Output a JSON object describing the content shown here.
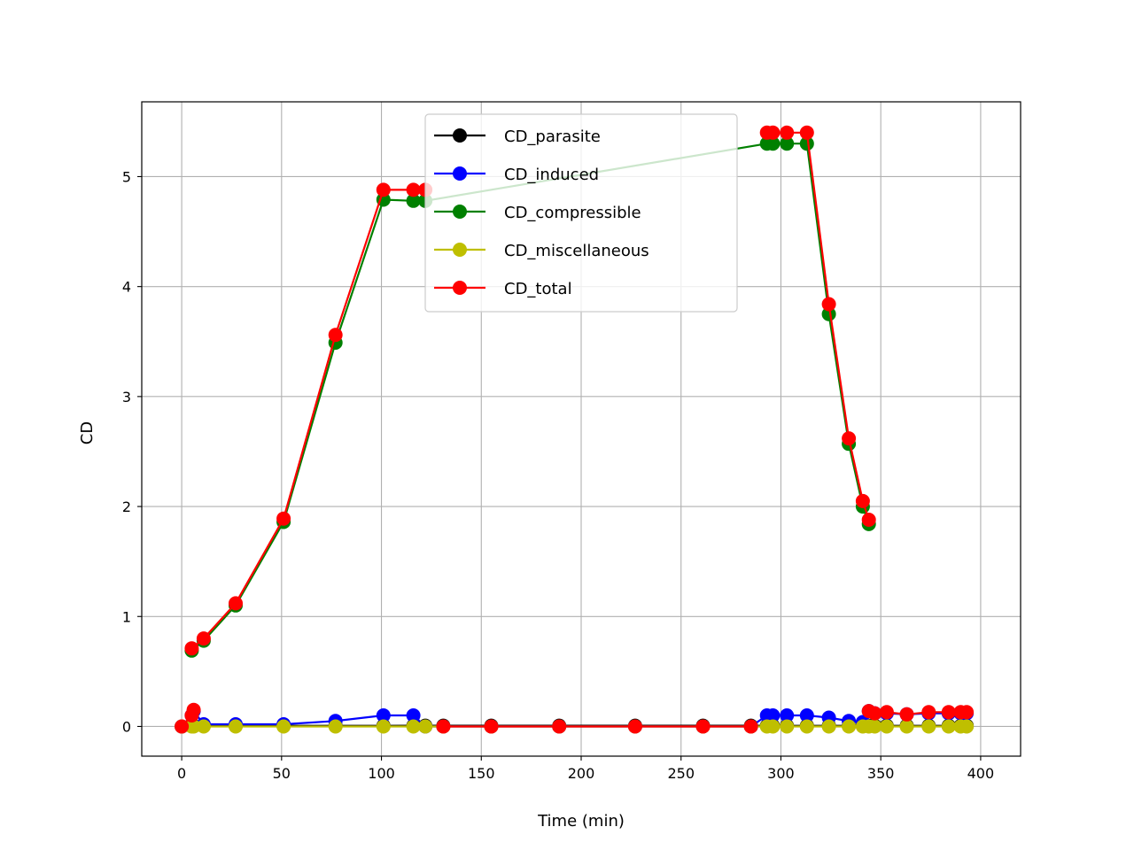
{
  "chart_data": {
    "type": "line",
    "title": "",
    "xlabel": "Time (min)",
    "ylabel": "CD",
    "xlim": [
      -20,
      420
    ],
    "ylim": [
      -0.27,
      5.68
    ],
    "xticks": [
      0,
      50,
      100,
      150,
      200,
      250,
      300,
      350,
      400
    ],
    "yticks": [
      0,
      1,
      2,
      3,
      4,
      5
    ],
    "grid": true,
    "legend_position": "top-center",
    "series": [
      {
        "name": "CD_parasite",
        "color": "#000000",
        "x": [
          0,
          5,
          6,
          11,
          27,
          51,
          77,
          101,
          116,
          122,
          131,
          155,
          189,
          227,
          261,
          285,
          293,
          296,
          303,
          313,
          324,
          334,
          341,
          344,
          347,
          353,
          363,
          374,
          384,
          390,
          393
        ],
        "y": [
          0,
          0.005,
          0.005,
          0.006,
          0.006,
          0.006,
          0.006,
          0.006,
          0.007,
          0.007,
          0.007,
          0.007,
          0.007,
          0.007,
          0.007,
          0.007,
          0.006,
          0.006,
          0.006,
          0.006,
          0.006,
          0.006,
          0.006,
          0.006,
          0.006,
          0.006,
          0.006,
          0.006,
          0.006,
          0.006,
          0.006
        ]
      },
      {
        "name": "CD_induced",
        "color": "#0000ff",
        "x": [
          0,
          5,
          6,
          11,
          27,
          51,
          77,
          101,
          116,
          122,
          131,
          155,
          189,
          227,
          261,
          285,
          293,
          296,
          303,
          313,
          324,
          334,
          341,
          344,
          347,
          353,
          363,
          374,
          384,
          390,
          393
        ],
        "y": [
          0,
          0.1,
          0.14,
          0.02,
          0.02,
          0.02,
          0.05,
          0.1,
          0.1,
          0,
          0,
          0,
          0,
          0,
          0,
          0,
          0.1,
          0.1,
          0.1,
          0.1,
          0.08,
          0.05,
          0.04,
          0.14,
          0.12,
          0.12,
          0.11,
          0.12,
          0.12,
          0.12,
          0.12
        ]
      },
      {
        "name": "CD_compressible",
        "color": "#008000",
        "x": [
          5,
          11,
          27,
          51,
          77,
          101,
          116,
          122,
          293,
          296,
          303,
          313,
          324,
          334,
          341,
          344
        ],
        "y": [
          0.69,
          0.78,
          1.1,
          1.86,
          3.49,
          4.79,
          4.78,
          4.78,
          5.3,
          5.3,
          5.3,
          5.3,
          3.75,
          2.57,
          2.0,
          1.84
        ]
      },
      {
        "name": "CD_miscellaneous",
        "color": "#bfbf00",
        "x": [
          0,
          5,
          6,
          11,
          27,
          51,
          77,
          101,
          116,
          122,
          131,
          155,
          189,
          227,
          261,
          285,
          293,
          296,
          303,
          313,
          324,
          334,
          341,
          344,
          347,
          353,
          363,
          374,
          384,
          390,
          393
        ],
        "y": [
          0,
          0,
          0,
          0,
          0,
          0,
          0,
          0,
          0,
          0,
          0,
          0,
          0,
          0,
          0,
          0,
          0,
          0,
          0,
          0,
          0,
          0,
          0,
          0,
          0,
          0,
          0,
          0,
          0,
          0,
          0
        ]
      },
      {
        "name": "CD_total",
        "color": "#ff0000",
        "x": [
          0,
          5,
          6,
          5,
          11,
          27,
          51,
          77,
          101,
          116,
          122,
          131,
          155,
          189,
          227,
          261,
          285,
          293,
          296,
          303,
          313,
          324,
          334,
          341,
          344,
          344,
          347,
          353,
          363,
          374,
          384,
          390,
          393
        ],
        "y": [
          0,
          0.1,
          0.15,
          0.71,
          0.8,
          1.12,
          1.89,
          3.56,
          4.88,
          4.88,
          4.88,
          0,
          0,
          0,
          0,
          0,
          0,
          5.4,
          5.4,
          5.4,
          5.4,
          3.84,
          2.62,
          2.05,
          1.88,
          0.14,
          0.12,
          0.13,
          0.11,
          0.13,
          0.13,
          0.13,
          0.13
        ],
        "segments": [
          [
            0,
            2
          ],
          [
            3,
            10
          ],
          [
            11,
            16
          ],
          [
            17,
            24
          ],
          [
            25,
            32
          ]
        ]
      }
    ]
  }
}
